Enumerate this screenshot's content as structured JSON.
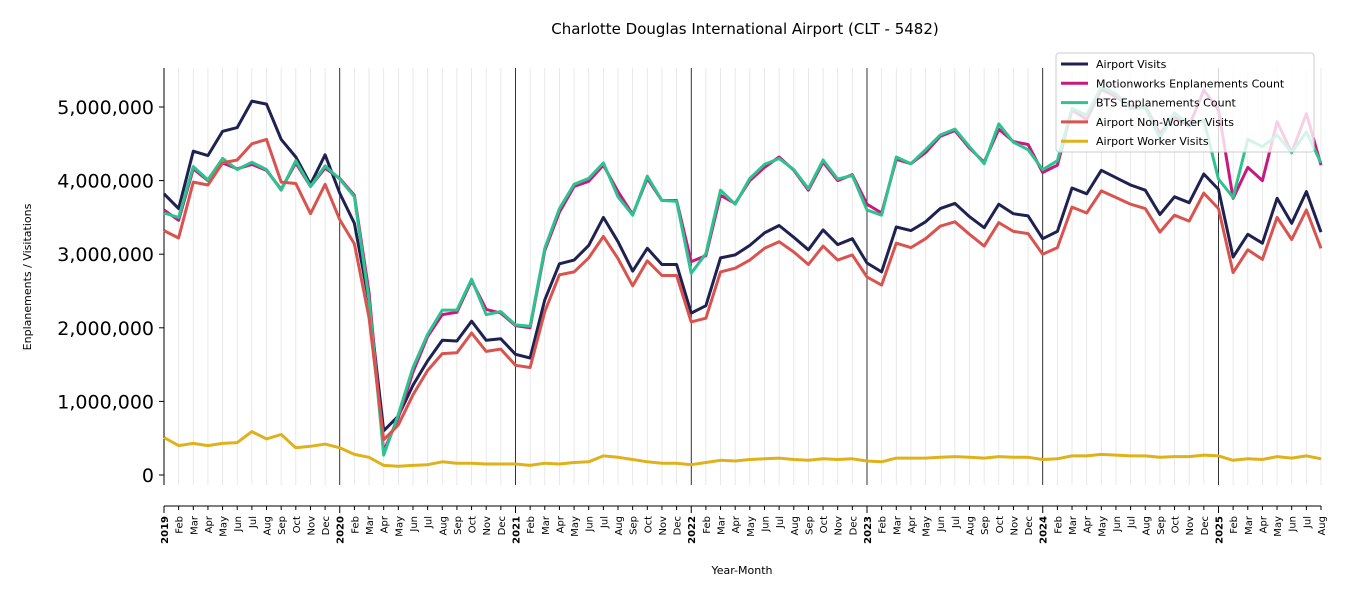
{
  "chart_data": {
    "type": "line",
    "title": "Charlotte Douglas International Airport (CLT - 5482)",
    "xlabel": "Year-Month",
    "ylabel": "Enplanements / Visitations",
    "ylim": [
      -300000,
      5500000
    ],
    "yticks": [
      0,
      1000000,
      2000000,
      3000000,
      4000000,
      5000000
    ],
    "ytick_labels": [
      "0",
      "1,000,000",
      "2,000,000",
      "3,000,000",
      "4,000,000",
      "5,000,000"
    ],
    "legend_position": "top-right",
    "grid": "vertical monthly gridlines, yearly separator lines",
    "x": [
      "2019-01",
      "2019-02",
      "2019-03",
      "2019-04",
      "2019-05",
      "2019-06",
      "2019-07",
      "2019-08",
      "2019-09",
      "2019-10",
      "2019-11",
      "2019-12",
      "2020-01",
      "2020-02",
      "2020-03",
      "2020-04",
      "2020-05",
      "2020-06",
      "2020-07",
      "2020-08",
      "2020-09",
      "2020-10",
      "2020-11",
      "2020-12",
      "2021-01",
      "2021-02",
      "2021-03",
      "2021-04",
      "2021-05",
      "2021-06",
      "2021-07",
      "2021-08",
      "2021-09",
      "2021-10",
      "2021-11",
      "2021-12",
      "2022-01",
      "2022-02",
      "2022-03",
      "2022-04",
      "2022-05",
      "2022-06",
      "2022-07",
      "2022-08",
      "2022-09",
      "2022-10",
      "2022-11",
      "2022-12",
      "2023-01",
      "2023-02",
      "2023-03",
      "2023-04",
      "2023-05",
      "2023-06",
      "2023-07",
      "2023-08",
      "2023-09",
      "2023-10",
      "2023-11",
      "2023-12",
      "2024-01",
      "2024-02",
      "2024-03",
      "2024-04",
      "2024-05",
      "2024-06",
      "2024-07",
      "2024-08",
      "2024-09",
      "2024-10",
      "2024-11",
      "2024-12",
      "2025-01",
      "2025-02",
      "2025-03",
      "2025-04",
      "2025-05",
      "2025-06",
      "2025-07",
      "2025-08"
    ],
    "xtick_labels": [
      "2019",
      "Feb",
      "Mar",
      "Apr",
      "May",
      "Jun",
      "Jul",
      "Aug",
      "Sep",
      "Oct",
      "Nov",
      "Dec",
      "2020",
      "Feb",
      "Mar",
      "Apr",
      "May",
      "Jun",
      "Jul",
      "Aug",
      "Sep",
      "Oct",
      "Nov",
      "Dec",
      "2021",
      "Feb",
      "Mar",
      "Apr",
      "May",
      "Jun",
      "Jul",
      "Aug",
      "Sep",
      "Oct",
      "Nov",
      "Dec",
      "2022",
      "Feb",
      "Mar",
      "Apr",
      "May",
      "Jun",
      "Jul",
      "Aug",
      "Sep",
      "Oct",
      "Nov",
      "Dec",
      "2023",
      "Feb",
      "Mar",
      "Apr",
      "May",
      "Jun",
      "Jul",
      "Aug",
      "Sep",
      "Oct",
      "Nov",
      "Dec",
      "2024",
      "Feb",
      "Mar",
      "Apr",
      "May",
      "Jun",
      "Jul",
      "Aug",
      "Sep",
      "Oct",
      "Nov",
      "Dec",
      "2025",
      "Feb",
      "Mar",
      "Apr",
      "May",
      "Jun",
      "Jul",
      "Aug"
    ],
    "series": [
      {
        "name": "Airport Visits",
        "color": "#1f2150",
        "values": [
          3820000,
          3620000,
          4400000,
          4340000,
          4670000,
          4720000,
          5080000,
          5040000,
          4560000,
          4320000,
          3950000,
          4350000,
          3830000,
          3420000,
          2350000,
          600000,
          800000,
          1220000,
          1550000,
          1830000,
          1820000,
          2090000,
          1830000,
          1850000,
          1640000,
          1590000,
          2380000,
          2870000,
          2920000,
          3120000,
          3500000,
          3170000,
          2770000,
          3080000,
          2860000,
          2860000,
          2200000,
          2300000,
          2950000,
          2990000,
          3120000,
          3290000,
          3390000,
          3230000,
          3060000,
          3330000,
          3130000,
          3210000,
          2880000,
          2760000,
          3370000,
          3320000,
          3440000,
          3620000,
          3690000,
          3510000,
          3360000,
          3680000,
          3550000,
          3520000,
          3210000,
          3310000,
          3900000,
          3820000,
          4140000,
          4040000,
          3940000,
          3870000,
          3540000,
          3780000,
          3700000,
          4090000,
          3880000,
          2960000,
          3270000,
          3150000,
          3760000,
          3420000,
          3850000,
          3300000
        ]
      },
      {
        "name": "Motionworks Enplanements Count",
        "color": "#c7197f",
        "values": [
          3600000,
          3460000,
          4160000,
          4000000,
          4240000,
          4160000,
          4220000,
          4140000,
          3880000,
          4240000,
          3920000,
          4170000,
          4030000,
          3800000,
          2480000,
          320000,
          780000,
          1400000,
          1880000,
          2180000,
          2210000,
          2640000,
          2250000,
          2200000,
          2030000,
          2000000,
          3050000,
          3570000,
          3920000,
          3990000,
          4210000,
          3850000,
          3540000,
          4030000,
          3730000,
          3730000,
          2900000,
          2980000,
          3800000,
          3690000,
          4000000,
          4180000,
          4320000,
          4140000,
          3870000,
          4250000,
          4000000,
          4080000,
          3680000,
          3560000,
          4290000,
          4230000,
          4380000,
          4600000,
          4680000,
          4440000,
          4250000,
          4700000,
          4530000,
          4490000,
          4110000,
          4210000,
          4960000,
          4830000,
          5240000,
          5140000,
          5010000,
          5010000,
          4640000,
          4860000,
          4740000,
          5230000,
          4960000,
          3760000,
          4180000,
          4000000,
          4800000,
          4380000,
          4910000,
          4210000
        ]
      },
      {
        "name": "BTS Enplanements Count",
        "color": "#2ec28f",
        "values": [
          3560000,
          3500000,
          4190000,
          4010000,
          4300000,
          4150000,
          4250000,
          4150000,
          3870000,
          4270000,
          3920000,
          4200000,
          4020000,
          3780000,
          2380000,
          270000,
          820000,
          1460000,
          1910000,
          2240000,
          2240000,
          2660000,
          2180000,
          2220000,
          2040000,
          2020000,
          3080000,
          3620000,
          3950000,
          4030000,
          4240000,
          3780000,
          3530000,
          4060000,
          3730000,
          3720000,
          2740000,
          3010000,
          3870000,
          3680000,
          4030000,
          4220000,
          4300000,
          4150000,
          3890000,
          4280000,
          4020000,
          4070000,
          3600000,
          3530000,
          4320000,
          4230000,
          4420000,
          4620000,
          4700000,
          4460000,
          4230000,
          4770000,
          4520000,
          4420000,
          4150000,
          4270000,
          4980000,
          4890000,
          5270000,
          5180000,
          4980000,
          4990000,
          4580000,
          4920000,
          4760000,
          4820000,
          4020000,
          3770000,
          4560000,
          4460000,
          4620000,
          4380000,
          4660000,
          4240000
        ]
      },
      {
        "name": "Airport Non-Worker Visits",
        "color": "#d9534f",
        "values": [
          3320000,
          3220000,
          3980000,
          3940000,
          4240000,
          4280000,
          4500000,
          4560000,
          3980000,
          3960000,
          3550000,
          3950000,
          3470000,
          3140000,
          2140000,
          480000,
          680000,
          1090000,
          1420000,
          1650000,
          1660000,
          1930000,
          1680000,
          1710000,
          1490000,
          1460000,
          2220000,
          2720000,
          2760000,
          2950000,
          3240000,
          2940000,
          2570000,
          2910000,
          2710000,
          2710000,
          2080000,
          2130000,
          2760000,
          2810000,
          2920000,
          3080000,
          3170000,
          3030000,
          2860000,
          3110000,
          2920000,
          2990000,
          2690000,
          2580000,
          3150000,
          3090000,
          3210000,
          3380000,
          3440000,
          3270000,
          3110000,
          3430000,
          3310000,
          3280000,
          3000000,
          3090000,
          3640000,
          3560000,
          3860000,
          3770000,
          3680000,
          3620000,
          3300000,
          3530000,
          3450000,
          3830000,
          3620000,
          2750000,
          3060000,
          2930000,
          3500000,
          3200000,
          3600000,
          3080000
        ]
      },
      {
        "name": "Airport Worker Visits",
        "color": "#dfb21b",
        "values": [
          510000,
          400000,
          430000,
          400000,
          430000,
          440000,
          590000,
          490000,
          550000,
          370000,
          390000,
          420000,
          370000,
          280000,
          240000,
          130000,
          120000,
          130000,
          140000,
          180000,
          160000,
          160000,
          150000,
          150000,
          150000,
          130000,
          160000,
          150000,
          170000,
          180000,
          260000,
          240000,
          210000,
          180000,
          160000,
          160000,
          140000,
          170000,
          200000,
          190000,
          210000,
          220000,
          230000,
          210000,
          200000,
          220000,
          210000,
          220000,
          190000,
          180000,
          230000,
          230000,
          230000,
          240000,
          250000,
          240000,
          230000,
          250000,
          240000,
          240000,
          210000,
          220000,
          260000,
          260000,
          280000,
          270000,
          260000,
          260000,
          240000,
          250000,
          250000,
          270000,
          260000,
          200000,
          220000,
          210000,
          250000,
          230000,
          260000,
          220000
        ]
      }
    ]
  }
}
